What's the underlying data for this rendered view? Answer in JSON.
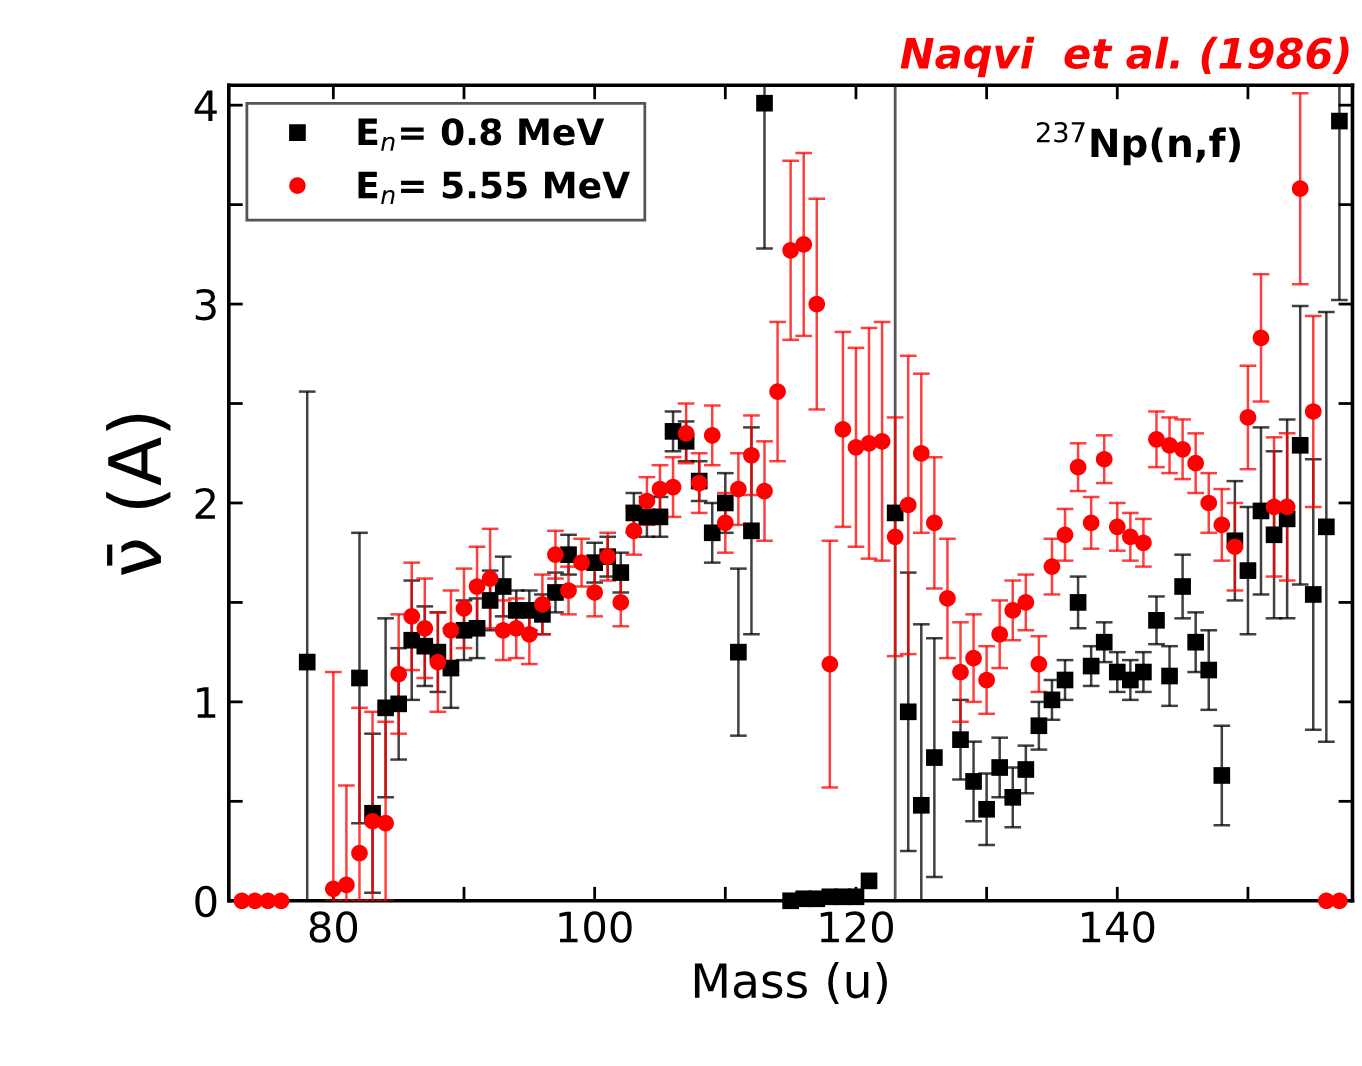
{
  "chart_data": {
    "type": "scatter",
    "xlabel": "Mass (u)",
    "ylabel": "ν̄ (A)",
    "xlim": [
      72,
      158
    ],
    "xticks": [
      80,
      {
        "value": 90,
        "label": null
      },
      100,
      {
        "value": 110,
        "label": null
      },
      120,
      {
        "value": 130,
        "label": null
      },
      140,
      {
        "value": 150,
        "label": null
      }
    ],
    "ylim": [
      0,
      4.1
    ],
    "yticks": [
      0,
      {
        "value": 0.5,
        "label": null
      },
      1,
      {
        "value": 1.5,
        "label": null
      },
      2,
      {
        "value": 2.5,
        "label": null
      },
      3,
      {
        "value": 3.5,
        "label": null
      },
      4
    ],
    "grid": false,
    "legend": "top left",
    "ref_lines": [
      {
        "axis": "x",
        "value": 123,
        "label": null,
        "color": "#555555"
      }
    ],
    "annotations": [
      "$^{237}$Np(n,f)",
      "Naqvi  et al. (1986)"
    ],
    "series": [
      {
        "name": "E$_{n}$= 0.8 MeV",
        "color": "#000000",
        "marker": "square",
        "x": [
          78,
          82,
          83,
          84,
          85,
          86,
          87,
          88,
          89,
          90,
          91,
          92,
          93,
          94,
          95,
          96,
          97,
          98,
          100,
          101,
          102,
          103,
          104,
          105,
          106,
          107,
          108,
          109,
          110,
          111,
          112,
          113,
          115,
          116,
          117,
          118,
          119,
          120,
          121,
          123,
          124,
          125,
          126,
          128,
          129,
          130,
          131,
          132,
          133,
          134,
          135,
          136,
          137,
          138,
          139,
          140,
          141,
          142,
          143,
          144,
          145,
          146,
          147,
          148,
          149,
          150,
          151,
          152,
          153,
          154,
          155,
          156,
          157
        ],
        "values": [
          1.2,
          1.12,
          0.44,
          0.97,
          0.99,
          1.31,
          1.28,
          1.25,
          1.17,
          1.36,
          1.37,
          1.51,
          1.58,
          1.46,
          1.46,
          1.44,
          1.55,
          1.74,
          1.7,
          1.73,
          1.65,
          1.95,
          1.93,
          1.93,
          2.36,
          2.31,
          2.11,
          1.85,
          2.0,
          1.25,
          1.86,
          4.01,
          0,
          0.01,
          0.01,
          0.02,
          0.02,
          0.02,
          0.1,
          1.95,
          0.95,
          0.48,
          0.72,
          0.81,
          0.6,
          0.46,
          0.67,
          0.52,
          0.66,
          0.88,
          1.01,
          1.11,
          1.5,
          1.18,
          1.3,
          1.15,
          1.11,
          1.15,
          1.41,
          1.13,
          1.58,
          1.3,
          1.16,
          0.63,
          1.81,
          1.66,
          1.96,
          1.84,
          1.92,
          2.29,
          1.54,
          1.88,
          3.92
        ],
        "errors": [
          [
            0,
            2.56
          ],
          0.73,
          0.4,
          0.45,
          0.28,
          0.3,
          0.2,
          0.2,
          0.2,
          0.15,
          0.15,
          0.15,
          0.15,
          0.1,
          0.1,
          0.1,
          0.1,
          0.1,
          0.1,
          0.1,
          0.1,
          0.1,
          0.1,
          0.1,
          0.1,
          0.1,
          0.1,
          0.15,
          0.15,
          0.42,
          0.52,
          [
            3.28,
            4.1
          ],
          null,
          null,
          null,
          null,
          null,
          null,
          null,
          null,
          0.7,
          [
            0,
            1.39
          ],
          0.6,
          0.2,
          0.2,
          0.18,
          0.15,
          0.15,
          0.12,
          0.12,
          0.1,
          0.1,
          0.13,
          0.1,
          0.1,
          0.1,
          0.1,
          0.1,
          0.12,
          0.15,
          0.16,
          0.15,
          0.2,
          0.25,
          0.3,
          0.32,
          0.42,
          0.42,
          0.5,
          0.7,
          0.68,
          1.08,
          [
            3.02,
            4.1
          ]
        ]
      },
      {
        "name": "E$_{n}$= 5.55 MeV",
        "color": "#ff0000",
        "marker": "circle",
        "x": [
          73,
          74,
          75,
          76,
          80,
          81,
          82,
          83,
          84,
          85,
          86,
          87,
          88,
          89,
          90,
          91,
          92,
          93,
          94,
          95,
          96,
          97,
          98,
          99,
          100,
          101,
          102,
          103,
          104,
          105,
          106,
          107,
          108,
          109,
          110,
          111,
          112,
          113,
          114,
          115,
          116,
          117,
          118,
          119,
          120,
          121,
          122,
          123,
          124,
          125,
          126,
          127,
          128,
          129,
          130,
          131,
          132,
          133,
          134,
          135,
          136,
          137,
          138,
          139,
          140,
          141,
          142,
          143,
          144,
          145,
          146,
          147,
          148,
          149,
          150,
          151,
          152,
          153,
          154,
          155,
          156,
          157
        ],
        "values": [
          0,
          0,
          0,
          0,
          0.06,
          0.08,
          0.24,
          0.4,
          0.39,
          1.14,
          1.43,
          1.37,
          1.2,
          1.36,
          1.47,
          1.58,
          1.62,
          1.36,
          1.37,
          1.34,
          1.49,
          1.74,
          1.56,
          1.7,
          1.55,
          1.73,
          1.5,
          1.86,
          2.01,
          2.07,
          2.08,
          2.35,
          2.1,
          2.34,
          1.9,
          2.07,
          2.24,
          2.06,
          2.56,
          3.27,
          3.3,
          3.0,
          1.19,
          2.37,
          2.28,
          2.3,
          2.31,
          1.83,
          1.99,
          2.25,
          1.9,
          1.52,
          1.15,
          1.22,
          1.11,
          1.34,
          1.46,
          1.5,
          1.19,
          1.68,
          1.84,
          2.18,
          1.9,
          2.22,
          1.88,
          1.83,
          1.8,
          2.32,
          2.29,
          2.27,
          2.2,
          2.0,
          1.89,
          1.78,
          2.43,
          2.83,
          1.98,
          1.98,
          3.58,
          2.46,
          0,
          0
        ],
        "errors": [
          null,
          null,
          null,
          null,
          [
            0,
            1.15
          ],
          [
            0,
            0.58
          ],
          [
            0,
            0.97
          ],
          [
            0,
            0.95
          ],
          [
            0,
            0.9
          ],
          0.3,
          0.27,
          0.25,
          0.25,
          0.2,
          0.2,
          0.2,
          0.25,
          0.15,
          0.15,
          0.15,
          0.15,
          0.12,
          0.12,
          0.12,
          0.12,
          0.12,
          0.12,
          0.12,
          0.12,
          0.12,
          0.15,
          0.15,
          0.15,
          0.15,
          0.15,
          0.18,
          0.2,
          0.25,
          0.35,
          0.45,
          0.46,
          0.53,
          0.62,
          0.49,
          0.5,
          0.58,
          0.6,
          0.6,
          0.75,
          0.4,
          0.33,
          0.3,
          0.25,
          0.22,
          0.17,
          0.17,
          0.15,
          0.14,
          0.14,
          0.14,
          0.13,
          0.12,
          0.13,
          0.12,
          0.12,
          0.12,
          0.12,
          0.14,
          0.14,
          0.15,
          0.15,
          0.15,
          0.18,
          0.22,
          0.26,
          0.32,
          0.35,
          0.37,
          0.48,
          0.48,
          null,
          null
        ]
      }
    ]
  }
}
